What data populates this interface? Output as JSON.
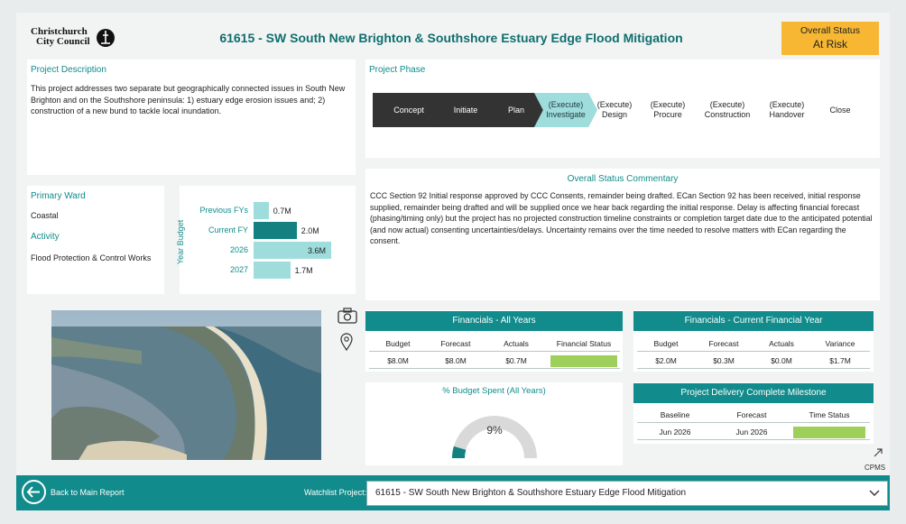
{
  "header": {
    "logo_line1": "Christchurch",
    "logo_line2": "City Council",
    "title": "61615 - SW South New Brighton & Southshore Estuary Edge Flood Mitigation",
    "status_label": "Overall Status",
    "status_value": "At Risk",
    "status_color": "#f7b733"
  },
  "description": {
    "title": "Project Description",
    "text": "This project addresses two separate but geographically connected issues in South New Brighton and on the Southshore peninsula: 1) estuary edge erosion issues and; 2) construction of a new bund to tackle local inundation."
  },
  "phase": {
    "title": "Project Phase",
    "steps": [
      {
        "l1": "Concept",
        "l2": ""
      },
      {
        "l1": "Initiate",
        "l2": ""
      },
      {
        "l1": "Plan",
        "l2": ""
      },
      {
        "l1": "(Execute)",
        "l2": "Investigate"
      },
      {
        "l1": "(Execute)",
        "l2": "Design"
      },
      {
        "l1": "(Execute)",
        "l2": "Procure"
      },
      {
        "l1": "(Execute)",
        "l2": "Construction"
      },
      {
        "l1": "(Execute)",
        "l2": "Handover"
      },
      {
        "l1": "Close",
        "l2": ""
      }
    ]
  },
  "ward": {
    "ward_label": "Primary Ward",
    "ward_value": "Coastal",
    "activity_label": "Activity",
    "activity_value": "Flood Protection & Control Works"
  },
  "budget_chart": {
    "axis_label": "Year Budget",
    "bars": [
      {
        "label": "Previous FYs",
        "value": 0.7,
        "text": "0.7M"
      },
      {
        "label": "Current FY",
        "value": 2.0,
        "text": "2.0M"
      },
      {
        "label": "2026",
        "value": 3.6,
        "text": "3.6M"
      },
      {
        "label": "2027",
        "value": 1.7,
        "text": "1.7M"
      }
    ],
    "colors": {
      "light": "#9fdcdc",
      "dark": "#148080"
    }
  },
  "commentary": {
    "title": "Overall Status Commentary",
    "text": "CCC Section 92 Initial response approved by CCC Consents, remainder being drafted. ECan Section 92 has been received, initial response supplied, remainder being drafted and will be supplied once we hear back regarding the initial response. Delay is affecting financial forecast (phasing/timing only) but the project has no projected construction timeline constraints or completion target date due to the anticipated potential (and now actual) consenting uncertainties/delays. Uncertainty remains over the time needed to resolve matters with ECan regarding the consent."
  },
  "fin_all": {
    "title": "Financials - All Years",
    "headers": [
      "Budget",
      "Forecast",
      "Actuals",
      "Financial Status"
    ],
    "values": [
      "$8.0M",
      "$8.0M",
      "$0.7M",
      ""
    ],
    "status_color": "#9ecf5a"
  },
  "fin_current": {
    "title": "Financials - Current Financial Year",
    "headers": [
      "Budget",
      "Forecast",
      "Actuals",
      "Variance"
    ],
    "values": [
      "$2.0M",
      "$0.3M",
      "$0.0M",
      "$1.7M"
    ]
  },
  "gauge": {
    "title": "% Budget Spent (All Years)",
    "value_text": "9%",
    "fraction": 0.09
  },
  "milestone": {
    "title": "Project Delivery Complete Milestone",
    "headers": [
      "Baseline",
      "Forecast",
      "Time Status"
    ],
    "values": [
      "Jun 2026",
      "Jun 2026",
      ""
    ],
    "status_color": "#9ecf5a"
  },
  "side_icons": {
    "camera": "camera-icon",
    "pin": "map-pin-icon",
    "cpms_label": "CPMS"
  },
  "footer": {
    "back_label": "Back to Main Report",
    "watchlist_label": "Watchlist Project:",
    "watchlist_value": "61615 - SW South New Brighton & Southshore Estuary Edge Flood Mitigation"
  }
}
